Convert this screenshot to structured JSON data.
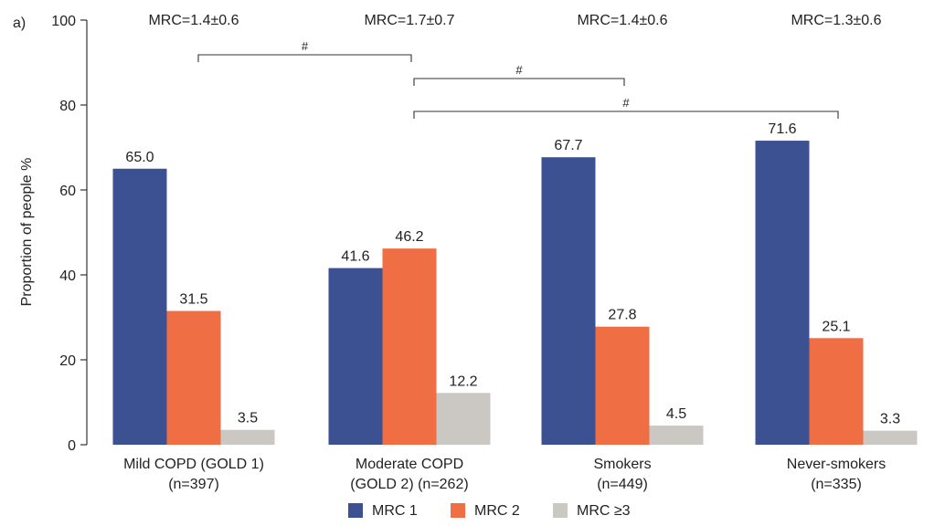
{
  "panel_label": "a)",
  "group_annotations": [
    "MRC=1.4±0.6",
    "MRC=1.7±0.7",
    "MRC=1.4±0.6",
    "MRC=1.3±0.6"
  ],
  "significance_brackets": [
    {
      "from_category": 0,
      "to_category": 1,
      "label": "#"
    },
    {
      "from_category": 1,
      "to_category": 2,
      "label": "#"
    },
    {
      "from_category": 1,
      "to_category": 3,
      "label": "#"
    }
  ],
  "colors": {
    "MRC 1": "#3c5192",
    "MRC 2": "#ef6e43",
    "MRC ≥3": "#cbc7c3"
  },
  "chart_data": {
    "type": "bar",
    "categories": [
      [
        "Mild COPD (GOLD 1)",
        "(n=397)"
      ],
      [
        "Moderate COPD",
        "(GOLD 2) (n=262)"
      ],
      [
        "Smokers",
        "(n=449)"
      ],
      [
        "Never-smokers",
        "(n=335)"
      ]
    ],
    "series": [
      {
        "name": "MRC 1",
        "values": [
          65.0,
          41.6,
          67.7,
          71.6
        ],
        "labels": [
          "65.0",
          "41.6",
          "67.7",
          "71.6"
        ]
      },
      {
        "name": "MRC 2",
        "values": [
          31.5,
          46.2,
          27.8,
          25.1
        ],
        "labels": [
          "31.5",
          "46.2",
          "27.8",
          "25.1"
        ]
      },
      {
        "name": "MRC ≥3",
        "values": [
          3.5,
          12.2,
          4.5,
          3.3
        ],
        "labels": [
          "3.5",
          "12.2",
          "4.5",
          "3.3"
        ]
      }
    ],
    "ylabel": "Proportion of people %",
    "xlabel": "",
    "ylim": [
      0,
      100
    ],
    "yticks": [
      0,
      20,
      40,
      60,
      80,
      100
    ],
    "legend_position": "bottom-center",
    "grid": false
  }
}
